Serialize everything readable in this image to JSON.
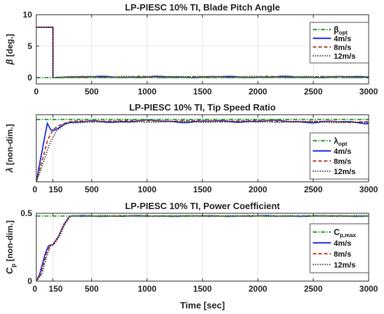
{
  "figure": {
    "xlabel": "Time [sec]"
  },
  "chart_data": [
    {
      "type": "line",
      "title": "LP-PIESC 10% TI, Blade Pitch Angle",
      "xlabel": "",
      "ylabel_symbol": "β",
      "ylabel_unit": "[deg.]",
      "xlim": [
        0,
        3000
      ],
      "ylim": [
        -1,
        10
      ],
      "xticks": [
        0,
        500,
        1000,
        1500,
        2000,
        2500,
        3000
      ],
      "yticks": [
        0,
        5,
        10
      ],
      "grid": true,
      "legend_position": "top-right",
      "series": [
        {
          "name": "β",
          "name_sub": "opt",
          "color": "#2a9a2a",
          "dash": "dashdot",
          "x": [
            0,
            3000
          ],
          "y": [
            0,
            0
          ]
        },
        {
          "name": "4m/s",
          "color": "#1f2bd6",
          "dash": "solid",
          "x": [
            0,
            150,
            150,
            300,
            3000
          ],
          "y": [
            8,
            8,
            0,
            0.1,
            0.1
          ],
          "ripple": 0.12
        },
        {
          "name": "8m/s",
          "color": "#b5402a",
          "dash": "dash",
          "x": [
            0,
            150,
            150,
            300,
            3000
          ],
          "y": [
            8,
            8,
            0,
            0.1,
            0.1
          ],
          "ripple": 0.1
        },
        {
          "name": "12m/s",
          "color": "#111111",
          "dash": "dot",
          "x": [
            0,
            150,
            150,
            300,
            3000
          ],
          "y": [
            8,
            8,
            0,
            0.1,
            0.1
          ],
          "ripple": 0.1
        }
      ]
    },
    {
      "type": "line",
      "title": "LP-PIESC 10% TI, Tip Speed Ratio",
      "xlabel": "",
      "ylabel_symbol": "λ",
      "ylabel_unit": "[non-dim.]",
      "xlim": [
        0,
        3000
      ],
      "ylim": [
        0,
        8.5
      ],
      "xticks": [
        0,
        150,
        500,
        1000,
        1500,
        2000,
        2500,
        3000
      ],
      "yticks": [],
      "grid": true,
      "legend_position": "center-right",
      "series": [
        {
          "name": "λ",
          "name_sub": "opt",
          "color": "#2a9a2a",
          "dash": "dashdot",
          "x": [
            0,
            3000
          ],
          "y": [
            7.9,
            7.9
          ]
        },
        {
          "name": "4m/s",
          "color": "#1f2bd6",
          "dash": "solid",
          "x": [
            0,
            40,
            80,
            100,
            130,
            160,
            200,
            250,
            300,
            500,
            1000,
            1500,
            2000,
            2500,
            3000
          ],
          "y": [
            0,
            3.0,
            6.0,
            7.4,
            6.6,
            6.5,
            6.8,
            7.3,
            7.5,
            7.6,
            7.7,
            7.6,
            7.7,
            7.6,
            7.5
          ],
          "ripple": 0.15
        },
        {
          "name": "8m/s",
          "color": "#b5402a",
          "dash": "dash",
          "x": [
            0,
            50,
            100,
            150,
            200,
            250,
            300,
            500,
            1000,
            1500,
            2000,
            2500,
            3000
          ],
          "y": [
            0,
            2.5,
            5.2,
            6.6,
            7.1,
            7.4,
            7.6,
            7.7,
            7.7,
            7.7,
            7.7,
            7.6,
            7.6
          ],
          "ripple": 0.08
        },
        {
          "name": "12m/s",
          "color": "#111111",
          "dash": "dot",
          "x": [
            0,
            60,
            120,
            180,
            250,
            300,
            500,
            1000,
            1500,
            2000,
            2500,
            3000
          ],
          "y": [
            0,
            2.3,
            4.8,
            6.4,
            7.2,
            7.5,
            7.6,
            7.6,
            7.6,
            7.6,
            7.6,
            7.5
          ],
          "ripple": 0.08
        }
      ]
    },
    {
      "type": "line",
      "title": "LP-PIESC 10% TI, Power Coefficient",
      "xlabel": "Time [sec]",
      "ylabel_symbol": "C",
      "ylabel_sub": "p",
      "ylabel_unit": "[non-dim.]",
      "xlim": [
        0,
        3000
      ],
      "ylim": [
        0,
        0.5
      ],
      "xticks": [
        0,
        150,
        500,
        1000,
        1500,
        2000,
        2500,
        3000
      ],
      "yticks": [
        0,
        0.5
      ],
      "grid": true,
      "legend_position": "center-right",
      "series": [
        {
          "name": "C",
          "name_sub": "p,max",
          "color": "#2a9a2a",
          "dash": "dashdot",
          "x": [
            0,
            3000
          ],
          "y": [
            0.48,
            0.48
          ]
        },
        {
          "name": "4m/s",
          "color": "#1f2bd6",
          "dash": "solid",
          "x": [
            0,
            30,
            80,
            110,
            150,
            200,
            250,
            300,
            3000
          ],
          "y": [
            0,
            0.05,
            0.2,
            0.26,
            0.27,
            0.33,
            0.42,
            0.48,
            0.48
          ],
          "ripple": 0.003
        },
        {
          "name": "8m/s",
          "color": "#b5402a",
          "dash": "dash",
          "x": [
            0,
            40,
            90,
            120,
            150,
            200,
            250,
            300,
            3000
          ],
          "y": [
            0,
            0.05,
            0.2,
            0.26,
            0.27,
            0.33,
            0.42,
            0.48,
            0.48
          ],
          "ripple": 0.003
        },
        {
          "name": "12m/s",
          "color": "#111111",
          "dash": "dot",
          "x": [
            0,
            50,
            100,
            130,
            160,
            210,
            260,
            310,
            3000
          ],
          "y": [
            0,
            0.05,
            0.2,
            0.26,
            0.27,
            0.33,
            0.42,
            0.48,
            0.48
          ],
          "ripple": 0.003
        }
      ]
    }
  ]
}
